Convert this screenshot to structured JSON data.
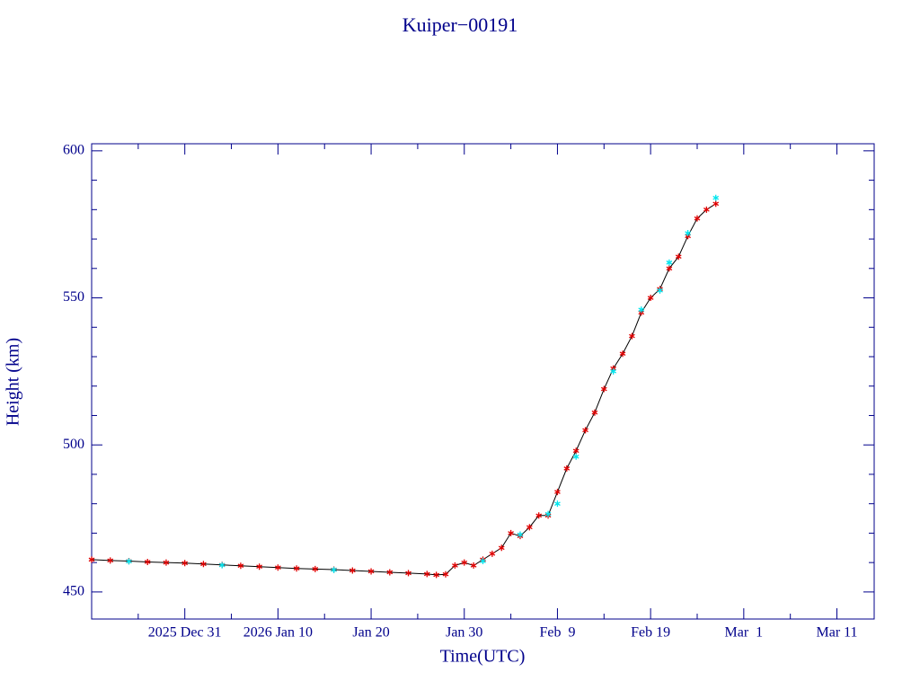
{
  "chart_data": {
    "type": "line",
    "title": "Kuiper−00191",
    "x_label": "Time(UTC)",
    "y_label": "Height (km)",
    "xlim": [
      "2025-12-21",
      "2026-03-15"
    ],
    "ylim": [
      440.8,
      602.4
    ],
    "xticks": [
      {
        "value": "2025-12-31",
        "label": "2025 Dec 31"
      },
      {
        "value": "2026-01-10",
        "label": "2026 Jan 10"
      },
      {
        "value": "2026-01-20",
        "label": "Jan 20"
      },
      {
        "value": "2026-01-30",
        "label": "Jan 30"
      },
      {
        "value": "2026-02-09",
        "label": "Feb  9"
      },
      {
        "value": "2026-02-19",
        "label": "Feb 19"
      },
      {
        "value": "2026-03-01",
        "label": "Mar  1"
      },
      {
        "value": "2026-03-11",
        "label": "Mar 11"
      }
    ],
    "xminorticks": [
      "2025-12-26",
      "2026-01-05",
      "2026-01-15",
      "2026-01-25",
      "2026-02-04",
      "2026-02-14",
      "2026-02-24",
      "2026-03-06"
    ],
    "yticks": [
      450,
      500,
      550,
      600
    ],
    "yminorticks": [
      460,
      470,
      480,
      490,
      510,
      520,
      530,
      540,
      560,
      570,
      580,
      590
    ],
    "series": [
      {
        "color": "#e00000",
        "line_color": "#000000",
        "x": [
          "2025-12-21",
          "2025-12-23",
          "2025-12-25",
          "2025-12-27",
          "2025-12-29",
          "2025-12-31",
          "2026-01-02",
          "2026-01-04",
          "2026-01-06",
          "2026-01-08",
          "2026-01-10",
          "2026-01-12",
          "2026-01-14",
          "2026-01-16",
          "2026-01-18",
          "2026-01-20",
          "2026-01-22",
          "2026-01-24",
          "2026-01-26",
          "2026-01-27",
          "2026-01-28",
          "2026-01-29",
          "2026-01-30",
          "2026-01-31",
          "2026-02-01",
          "2026-02-02",
          "2026-02-03",
          "2026-02-04",
          "2026-02-05",
          "2026-02-06",
          "2026-02-07",
          "2026-02-08",
          "2026-02-09",
          "2026-02-10",
          "2026-02-11",
          "2026-02-12",
          "2026-02-13",
          "2026-02-14",
          "2026-02-15",
          "2026-02-16",
          "2026-02-17",
          "2026-02-18",
          "2026-02-19",
          "2026-02-20",
          "2026-02-21",
          "2026-02-22",
          "2026-02-23",
          "2026-02-24",
          "2026-02-25",
          "2026-02-26"
        ],
        "values": [
          461.0,
          460.7,
          460.5,
          460.2,
          460.0,
          459.8,
          459.5,
          459.2,
          458.9,
          458.6,
          458.3,
          458.0,
          457.8,
          457.6,
          457.3,
          457.0,
          456.7,
          456.4,
          456.1,
          455.8,
          456.0,
          459.0,
          460.0,
          459.0,
          461.0,
          463.0,
          465.0,
          470.0,
          469.0,
          472.0,
          476.0,
          476.0,
          484.0,
          492.0,
          498.0,
          505.0,
          511.0,
          519.0,
          526.0,
          531.0,
          537.0,
          545.0,
          550.0,
          553.0,
          560.0,
          564.0,
          571.0,
          577.0,
          580.0,
          582.0
        ]
      },
      {
        "color": "#00e5ee",
        "x": [
          "2025-12-25",
          "2026-01-04",
          "2026-01-16",
          "2026-02-01",
          "2026-02-05",
          "2026-02-08",
          "2026-02-09",
          "2026-02-11",
          "2026-02-15",
          "2026-02-18",
          "2026-02-20",
          "2026-02-21",
          "2026-02-23",
          "2026-02-26"
        ],
        "values": [
          460.4,
          459.1,
          457.5,
          460.5,
          469.5,
          476.5,
          480.0,
          496.0,
          525.0,
          546.0,
          552.5,
          562.0,
          572.0,
          584.0
        ]
      }
    ]
  }
}
